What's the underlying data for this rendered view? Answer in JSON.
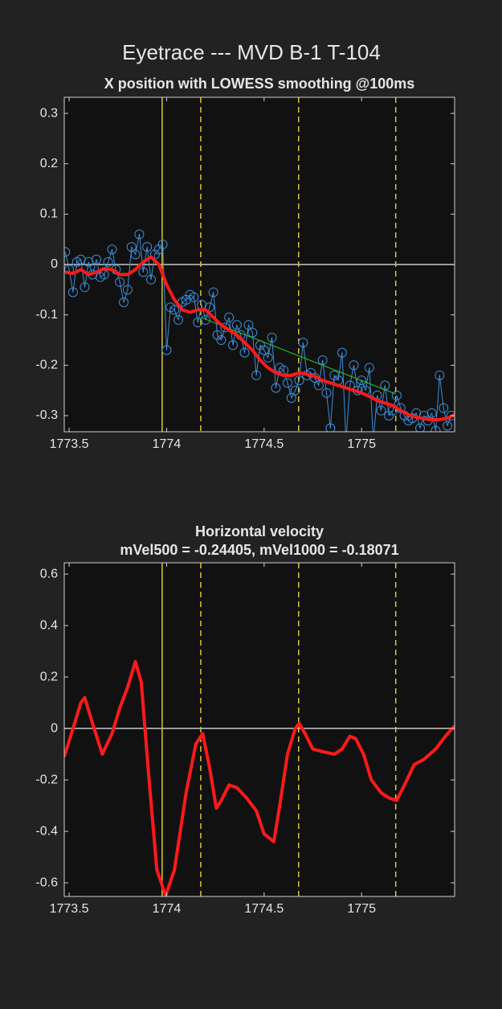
{
  "figure_title": "Eyetrace --- MVD B-1 T-104",
  "chart_data": [
    {
      "type": "line",
      "title": "X position with LOWESS smoothing @100ms",
      "xlim": [
        1773.475,
        1775.477
      ],
      "ylim": [
        -0.332,
        0.332
      ],
      "xticks": [
        1773.5,
        1774,
        1774.5,
        1775
      ],
      "yticks": [
        -0.3,
        -0.2,
        -0.1,
        0,
        0.1,
        0.2,
        0.3
      ],
      "hline": 0,
      "hline_color": "#c8c8c8",
      "vlines": [
        {
          "value": 1773.977,
          "style": "solid"
        },
        {
          "value": 1774.175,
          "style": "dashed"
        },
        {
          "value": 1774.677,
          "style": "dashed"
        },
        {
          "value": 1775.175,
          "style": "dashed"
        }
      ],
      "vline_color": "#d8c83a",
      "series": [
        {
          "color": "#3a8fd9",
          "width": 1,
          "marker": "circle",
          "x": [
            1773.48,
            1773.5,
            1773.52,
            1773.54,
            1773.56,
            1773.58,
            1773.6,
            1773.62,
            1773.64,
            1773.66,
            1773.68,
            1773.7,
            1773.72,
            1773.74,
            1773.76,
            1773.78,
            1773.8,
            1773.82,
            1773.84,
            1773.86,
            1773.88,
            1773.9,
            1773.92,
            1773.94,
            1773.96,
            1773.98,
            1774,
            1774.02,
            1774.04,
            1774.06,
            1774.08,
            1774.1,
            1774.12,
            1774.14,
            1774.16,
            1774.18,
            1774.2,
            1774.22,
            1774.24,
            1774.26,
            1774.28,
            1774.3,
            1774.32,
            1774.34,
            1774.36,
            1774.38,
            1774.4,
            1774.42,
            1774.44,
            1774.46,
            1774.48,
            1774.5,
            1774.52,
            1774.54,
            1774.56,
            1774.58,
            1774.6,
            1774.62,
            1774.64,
            1774.66,
            1774.68,
            1774.7,
            1774.72,
            1774.74,
            1774.76,
            1774.78,
            1774.8,
            1774.82,
            1774.84,
            1774.86,
            1774.88,
            1774.9,
            1774.92,
            1774.94,
            1774.96,
            1774.98,
            1775,
            1775.02,
            1775.04,
            1775.06,
            1775.08,
            1775.1,
            1775.12,
            1775.14,
            1775.16,
            1775.18,
            1775.2,
            1775.22,
            1775.24,
            1775.26,
            1775.28,
            1775.3,
            1775.32,
            1775.34,
            1775.36,
            1775.38,
            1775.4,
            1775.42,
            1775.44,
            1775.46
          ],
          "values": [
            0.025,
            -0.01,
            -0.055,
            0.005,
            0.01,
            -0.045,
            0.005,
            -0.02,
            0.01,
            -0.025,
            -0.02,
            0.005,
            0.03,
            -0.01,
            -0.035,
            -0.075,
            -0.05,
            0.035,
            0.02,
            0.06,
            -0.015,
            0.035,
            -0.03,
            0.02,
            0.03,
            0.04,
            -0.17,
            -0.085,
            -0.09,
            -0.11,
            -0.075,
            -0.07,
            -0.06,
            -0.065,
            -0.115,
            -0.08,
            -0.11,
            -0.085,
            -0.055,
            -0.14,
            -0.15,
            -0.125,
            -0.105,
            -0.16,
            -0.12,
            -0.14,
            -0.175,
            -0.12,
            -0.135,
            -0.22,
            -0.16,
            -0.17,
            -0.185,
            -0.145,
            -0.245,
            -0.205,
            -0.21,
            -0.235,
            -0.265,
            -0.25,
            -0.23,
            -0.155,
            -0.22,
            -0.215,
            -0.225,
            -0.24,
            -0.19,
            -0.255,
            -0.325,
            -0.22,
            -0.23,
            -0.175,
            -0.35,
            -0.24,
            -0.2,
            -0.25,
            -0.23,
            -0.25,
            -0.205,
            -0.35,
            -0.26,
            -0.29,
            -0.24,
            -0.3,
            -0.29,
            -0.26,
            -0.285,
            -0.3,
            -0.31,
            -0.305,
            -0.295,
            -0.325,
            -0.3,
            -0.31,
            -0.295,
            -0.33,
            -0.22,
            -0.285,
            -0.32,
            -0.3
          ]
        },
        {
          "color": "#22cc22",
          "width": 1,
          "x": [
            1774.175,
            1775.175
          ],
          "values": [
            -0.105,
            -0.257
          ]
        },
        {
          "color": "#ff1a1a",
          "width": 4,
          "x": [
            1773.48,
            1773.52,
            1773.56,
            1773.6,
            1773.64,
            1773.68,
            1773.72,
            1773.76,
            1773.8,
            1773.84,
            1773.88,
            1773.92,
            1773.96,
            1774,
            1774.04,
            1774.08,
            1774.12,
            1774.16,
            1774.2,
            1774.24,
            1774.28,
            1774.32,
            1774.36,
            1774.4,
            1774.44,
            1774.48,
            1774.52,
            1774.56,
            1774.6,
            1774.64,
            1774.68,
            1774.72,
            1774.76,
            1774.8,
            1774.84,
            1774.88,
            1774.92,
            1774.96,
            1775,
            1775.04,
            1775.08,
            1775.12,
            1775.16,
            1775.2,
            1775.24,
            1775.28,
            1775.32,
            1775.36,
            1775.4,
            1775.44,
            1775.48
          ],
          "values": [
            -0.015,
            -0.018,
            -0.01,
            -0.02,
            -0.015,
            -0.008,
            -0.01,
            -0.02,
            -0.02,
            -0.01,
            0.005,
            0.015,
            0.0,
            -0.04,
            -0.07,
            -0.09,
            -0.095,
            -0.09,
            -0.09,
            -0.105,
            -0.12,
            -0.13,
            -0.14,
            -0.155,
            -0.17,
            -0.19,
            -0.205,
            -0.215,
            -0.22,
            -0.22,
            -0.215,
            -0.218,
            -0.222,
            -0.23,
            -0.235,
            -0.24,
            -0.245,
            -0.25,
            -0.255,
            -0.262,
            -0.27,
            -0.275,
            -0.28,
            -0.29,
            -0.298,
            -0.303,
            -0.306,
            -0.308,
            -0.308,
            -0.305,
            -0.298
          ]
        }
      ]
    },
    {
      "type": "line",
      "title": "Horizontal velocity",
      "subtitle": "mVel500 = -0.24405, mVel1000 = -0.18071",
      "xlim": [
        1773.475,
        1775.477
      ],
      "ylim": [
        -0.653,
        0.644
      ],
      "xticks": [
        1773.5,
        1774,
        1774.5,
        1775
      ],
      "yticks": [
        -0.6,
        -0.4,
        -0.2,
        0,
        0.2,
        0.4,
        0.6
      ],
      "hline": 0,
      "hline_color": "#c8c8c8",
      "vlines": [
        {
          "value": 1773.977,
          "style": "solid"
        },
        {
          "value": 1774.175,
          "style": "dashed"
        },
        {
          "value": 1774.677,
          "style": "dashed"
        },
        {
          "value": 1775.175,
          "style": "dashed"
        }
      ],
      "vline_color": "#d8c83a",
      "series": [
        {
          "color": "#ff1a1a",
          "width": 4,
          "x": [
            1773.475,
            1773.52,
            1773.56,
            1773.58,
            1773.62,
            1773.67,
            1773.72,
            1773.76,
            1773.8,
            1773.84,
            1773.87,
            1773.91,
            1773.95,
            1773.995,
            1774.04,
            1774.1,
            1774.15,
            1774.185,
            1774.22,
            1774.255,
            1774.28,
            1774.32,
            1774.36,
            1774.41,
            1774.46,
            1774.5,
            1774.55,
            1774.58,
            1774.62,
            1774.66,
            1774.68,
            1774.71,
            1774.75,
            1774.8,
            1774.86,
            1774.9,
            1774.94,
            1774.97,
            1775.01,
            1775.05,
            1775.1,
            1775.14,
            1775.18,
            1775.22,
            1775.27,
            1775.32,
            1775.38,
            1775.43,
            1775.477
          ],
          "values": [
            -0.11,
            0.0,
            0.1,
            0.12,
            0.02,
            -0.1,
            -0.02,
            0.08,
            0.16,
            0.26,
            0.18,
            -0.2,
            -0.55,
            -0.65,
            -0.55,
            -0.25,
            -0.06,
            -0.02,
            -0.15,
            -0.31,
            -0.28,
            -0.22,
            -0.23,
            -0.27,
            -0.32,
            -0.41,
            -0.44,
            -0.3,
            -0.1,
            0.0,
            0.02,
            -0.02,
            -0.08,
            -0.09,
            -0.1,
            -0.08,
            -0.03,
            -0.04,
            -0.1,
            -0.2,
            -0.25,
            -0.27,
            -0.28,
            -0.22,
            -0.14,
            -0.12,
            -0.08,
            -0.03,
            0.01
          ]
        }
      ]
    }
  ]
}
